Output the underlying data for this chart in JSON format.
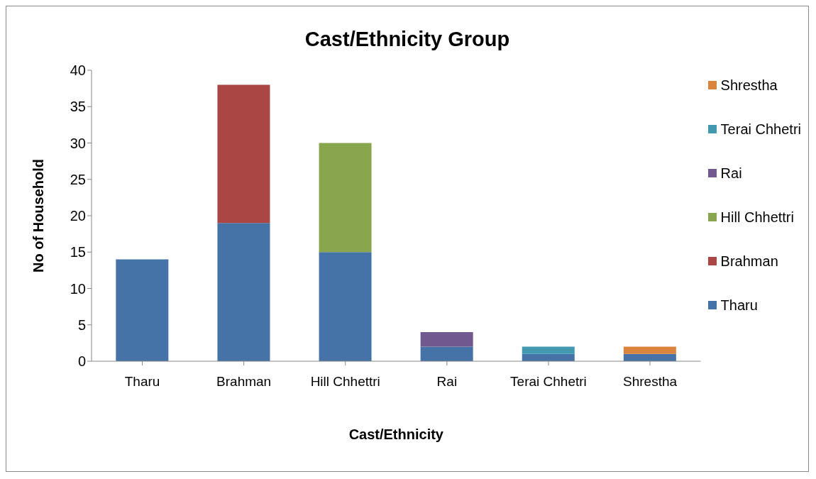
{
  "chart_data": {
    "type": "bar",
    "title": "Cast/Ethnicity Group",
    "xlabel": "Cast/Ethnicity",
    "ylabel": "No of Household",
    "categories": [
      "Tharu",
      "Brahman",
      "Hill Chhettri",
      "Rai",
      "Terai Chhetri",
      "Shrestha"
    ],
    "stacked": true,
    "legend": "right",
    "grid": false,
    "ylim": [
      0,
      40
    ],
    "yticks": [
      0,
      5,
      10,
      15,
      20,
      25,
      30,
      35,
      40
    ],
    "series": [
      {
        "name": "Tharu",
        "color": "#4572a7",
        "values": [
          14,
          19,
          15,
          2,
          1,
          1
        ]
      },
      {
        "name": "Brahman",
        "color": "#aa4643",
        "values": [
          0,
          19,
          0,
          0,
          0,
          0
        ]
      },
      {
        "name": "Hill Chhettri",
        "color": "#89a54e",
        "values": [
          0,
          0,
          15,
          0,
          0,
          0
        ]
      },
      {
        "name": "Rai",
        "color": "#71588f",
        "values": [
          0,
          0,
          0,
          2,
          0,
          0
        ]
      },
      {
        "name": "Terai Chhetri",
        "color": "#4198af",
        "values": [
          0,
          0,
          0,
          0,
          1,
          0
        ]
      },
      {
        "name": "Shrestha",
        "color": "#db843d",
        "values": [
          0,
          0,
          0,
          0,
          0,
          1
        ]
      }
    ]
  }
}
